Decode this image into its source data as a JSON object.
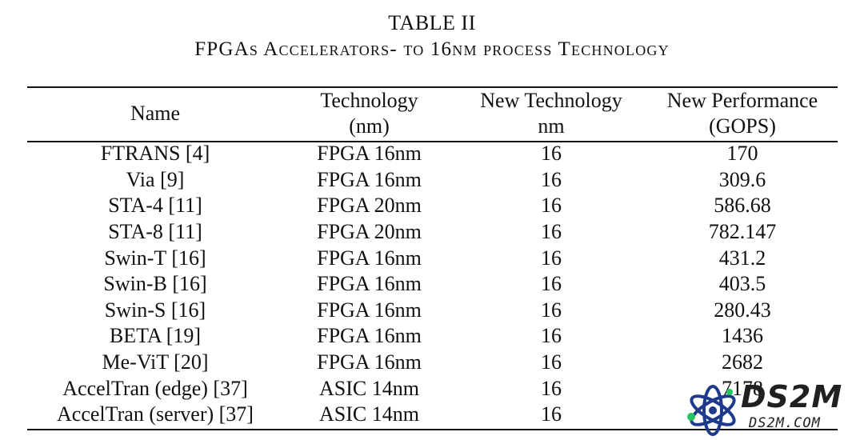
{
  "caption": {
    "label": "TABLE II",
    "title": "FPGAs Accelerators- to 16nm process Technology"
  },
  "table": {
    "headers": [
      [
        "Name"
      ],
      [
        "Technology",
        "(nm)"
      ],
      [
        "New Technology",
        "nm"
      ],
      [
        "New Performance",
        "(GOPS)"
      ]
    ],
    "rows": [
      [
        "FTRANS [4]",
        "FPGA 16nm",
        "16",
        "170"
      ],
      [
        "Via [9]",
        "FPGA 16nm",
        "16",
        "309.6"
      ],
      [
        "STA-4 [11]",
        "FPGA 20nm",
        "16",
        "586.68"
      ],
      [
        "STA-8 [11]",
        "FPGA 20nm",
        "16",
        "782.147"
      ],
      [
        "Swin-T [16]",
        "FPGA 16nm",
        "16",
        "431.2"
      ],
      [
        "Swin-B [16]",
        "FPGA 16nm",
        "16",
        "403.5"
      ],
      [
        "Swin-S [16]",
        "FPGA 16nm",
        "16",
        "280.43"
      ],
      [
        "BETA [19]",
        "FPGA 16nm",
        "16",
        "1436"
      ],
      [
        "Me-ViT [20]",
        "FPGA 16nm",
        "16",
        "2682"
      ],
      [
        "AccelTran (edge) [37]",
        "ASIC 14nm",
        "16",
        "7178"
      ],
      [
        "AccelTran (server) [37]",
        "ASIC 14nm",
        "16",
        ""
      ]
    ]
  },
  "watermark": {
    "brand": "DS2M",
    "site": "DS2M.COM",
    "icon": "atom-icon",
    "colors": {
      "ring": "#1e3a8a",
      "dot": "#22c55e",
      "text": "#202020"
    }
  }
}
